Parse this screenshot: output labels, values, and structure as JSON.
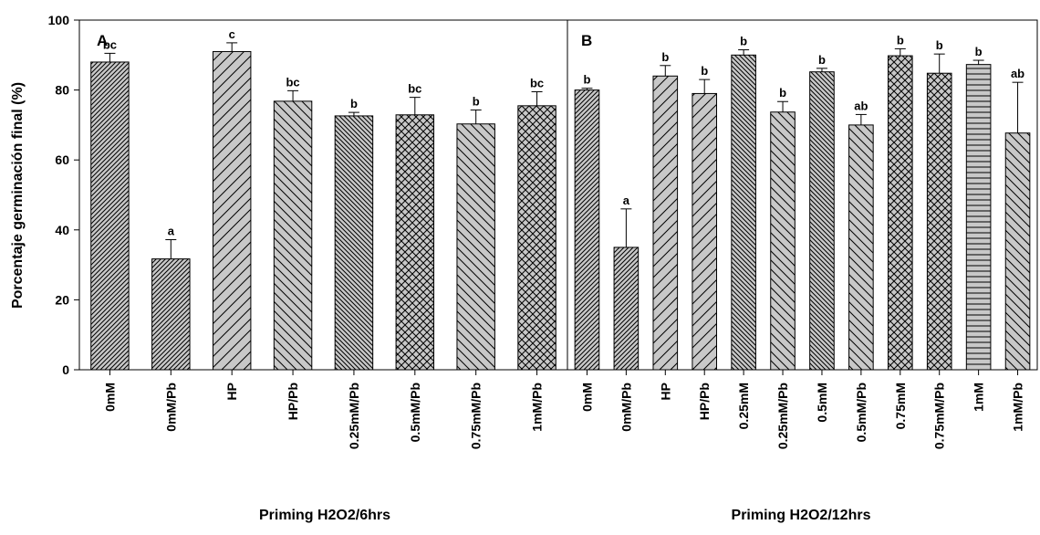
{
  "chart_data": {
    "type": "bar",
    "ylabel": "Porcentaje germinación final (%)",
    "ylim": [
      0,
      100
    ],
    "yticks": [
      0,
      20,
      40,
      60,
      80,
      100
    ],
    "panels": [
      {
        "label": "A",
        "xlabel": "Priming H2O2/6hrs",
        "categories": [
          "0mM",
          "0mM/Pb",
          "HP",
          "HP/Pb",
          "0.25mM/Pb",
          "0.5mM/Pb",
          "0.75mM/Pb",
          "1mM/Pb"
        ],
        "values": [
          88,
          31.7,
          91,
          76.8,
          72.6,
          72.9,
          70.3,
          75.5
        ],
        "errors": [
          2.5,
          5.5,
          2.5,
          3,
          1,
          5,
          4,
          4
        ],
        "significance": [
          "bc",
          "a",
          "c",
          "bc",
          "b",
          "bc",
          "b",
          "bc"
        ],
        "patterns": [
          "dense-diag",
          "dense-diag",
          "wide-diag",
          "back-diag",
          "dense-back",
          "cross",
          "back-diag",
          "cross"
        ]
      },
      {
        "label": "B",
        "xlabel": "Priming H2O2/12hrs",
        "categories": [
          "0mM",
          "0mM/Pb",
          "HP",
          "HP/Pb",
          "0.25mM",
          "0.25mM/Pb",
          "0.5mM",
          "0.5mM/Pb",
          "0.75mM",
          "0.75mM/Pb",
          "1mM",
          "1mM/Pb"
        ],
        "values": [
          80,
          35,
          84,
          79,
          90,
          73.7,
          85.2,
          70,
          89.8,
          84.8,
          87.3,
          67.7
        ],
        "errors": [
          0.5,
          11,
          3,
          4,
          1.5,
          3,
          1,
          3,
          2,
          5.5,
          1.2,
          14.5
        ],
        "significance": [
          "b",
          "a",
          "b",
          "b",
          "b",
          "b",
          "b",
          "ab",
          "b",
          "b",
          "b",
          "ab"
        ],
        "patterns": [
          "dense-diag",
          "dense-diag",
          "wide-diag",
          "wide-diag",
          "dense-back",
          "back-diag",
          "dense-back",
          "back-diag",
          "cross",
          "cross",
          "horizontal",
          "back-diag"
        ]
      }
    ]
  }
}
